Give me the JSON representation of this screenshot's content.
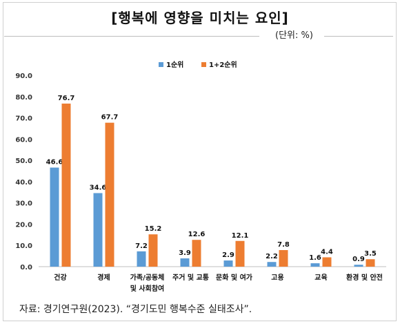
{
  "header": {
    "title": "[행복에 영향을 미치는 요인]",
    "unit": "(단위: %)"
  },
  "footer": {
    "source": "자료: 경기연구원(2023). “경기도민 행복수준 실태조사”."
  },
  "colors": {
    "series1": "#5b9bd5",
    "series2": "#ed7d31"
  },
  "chart_data": {
    "type": "bar",
    "title": "[행복에 영향을 미치는 요인]",
    "unit": "(단위: %)",
    "categories": [
      [
        "건강"
      ],
      [
        "경제"
      ],
      [
        "가족/공동체",
        "및 사회참여"
      ],
      [
        "주거 및 교통"
      ],
      [
        "문화 및 여가"
      ],
      [
        "고용"
      ],
      [
        "교육"
      ],
      [
        "환경 및 안전"
      ]
    ],
    "series": [
      {
        "name": "1순위",
        "values": [
          46.6,
          34.6,
          7.2,
          3.9,
          2.9,
          2.2,
          1.6,
          0.9
        ]
      },
      {
        "name": "1+2순위",
        "values": [
          76.7,
          67.7,
          15.2,
          12.6,
          12.1,
          7.8,
          4.4,
          3.5
        ]
      }
    ],
    "ylim": [
      0,
      90
    ],
    "yticks": [
      "0.0",
      "10.0",
      "20.0",
      "30.0",
      "40.0",
      "50.0",
      "60.0",
      "70.0",
      "80.0",
      "90.0"
    ],
    "legend": "top-center",
    "grid": false
  }
}
